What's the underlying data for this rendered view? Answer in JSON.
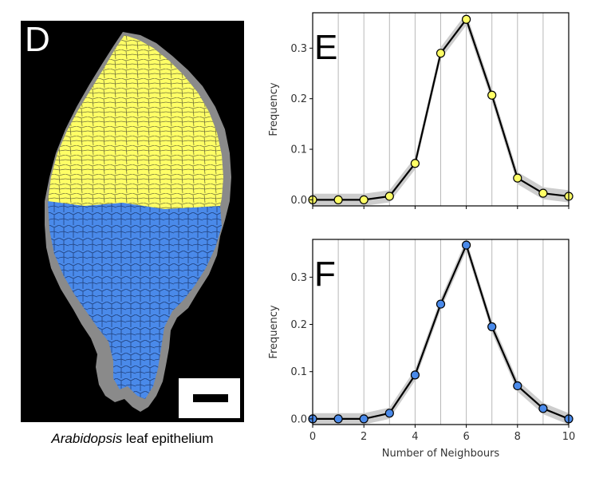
{
  "leaf_panel": {
    "letter": "D",
    "caption_italic": "Arabidopsis",
    "caption_rest": " leaf epithelium",
    "colors": {
      "upper": "#ffff66",
      "lower": "#4a8aea",
      "edge": "#8a8a8a",
      "background": "#000000"
    }
  },
  "chart_data": [
    {
      "type": "line",
      "letter": "E",
      "x": [
        0,
        1,
        2,
        3,
        4,
        5,
        6,
        7,
        8,
        9,
        10
      ],
      "values": [
        0.0,
        0.0,
        0.0,
        0.007,
        0.072,
        0.29,
        0.357,
        0.207,
        0.043,
        0.013,
        0.007
      ],
      "marker_color": "#ffff66",
      "xlim": [
        0,
        10
      ],
      "ylim": [
        -0.012,
        0.37
      ],
      "yticks": [
        0.0,
        0.1,
        0.2,
        0.3
      ],
      "ytick_labels": [
        "0.0",
        "0.1",
        "0.2",
        "0.3"
      ],
      "xticks": [
        0,
        2,
        4,
        6,
        8,
        10
      ],
      "xtick_labels": [],
      "ylabel": "Frequency",
      "xlabel": ""
    },
    {
      "type": "line",
      "letter": "F",
      "x": [
        0,
        1,
        2,
        3,
        4,
        5,
        6,
        7,
        8,
        9,
        10
      ],
      "values": [
        0.0,
        0.0,
        0.0,
        0.012,
        0.093,
        0.243,
        0.368,
        0.195,
        0.07,
        0.022,
        0.0
      ],
      "marker_color": "#4a8aea",
      "xlim": [
        0,
        10
      ],
      "ylim": [
        -0.012,
        0.38
      ],
      "yticks": [
        0.0,
        0.1,
        0.2,
        0.3
      ],
      "ytick_labels": [
        "0.0",
        "0.1",
        "0.2",
        "0.3"
      ],
      "xticks": [
        0,
        2,
        4,
        6,
        8,
        10
      ],
      "xtick_labels": [
        "0",
        "2",
        "4",
        "6",
        "8",
        "10"
      ],
      "ylabel": "Frequency",
      "xlabel": "Number of Neighbours"
    }
  ]
}
